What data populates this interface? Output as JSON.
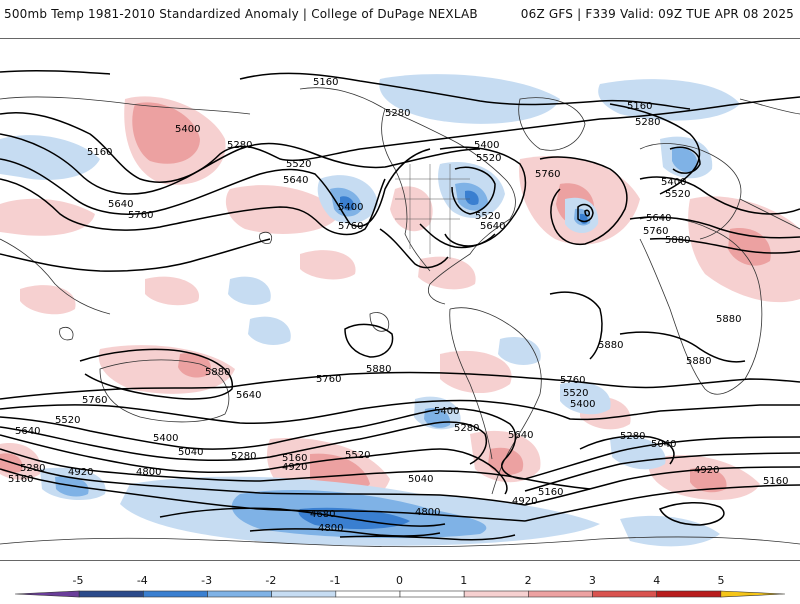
{
  "header": {
    "title": "500mb Temp 1981-2010 Standardized Anomaly | College of DuPage NEXLAB",
    "run_info": "06Z GFS | F339 Valid: 09Z TUE APR 08 2025"
  },
  "colorbar": {
    "ticks": [
      "-5",
      "-4",
      "-3",
      "-2",
      "-1",
      "0",
      "1",
      "2",
      "3",
      "4",
      "5"
    ],
    "colors": {
      "neg5": "#6a3d9a",
      "neg4": "#2b4a8a",
      "neg3": "#3a7fd0",
      "neg2": "#7fb2e6",
      "neg1": "#c6dcf2",
      "zero": "#ffffff",
      "pos1": "#f6d0d0",
      "pos2": "#eca1a1",
      "pos3": "#d9534f",
      "pos4": "#b81d1d",
      "pos5": "#7a0c0c",
      "extreme": "#f5c518"
    }
  },
  "contour_labels": {
    "l1": "5160",
    "l2": "5280",
    "l3": "5160",
    "l4": "5400",
    "l5": "5160",
    "l6": "5280",
    "l7": "5520",
    "l8": "5640",
    "l9": "5640",
    "l10": "5760",
    "l11": "5400",
    "l12": "5760",
    "l13": "5280",
    "l14": "5400",
    "l15": "5520",
    "l16": "5520",
    "l17": "5640",
    "l18": "5760",
    "l19": "5280",
    "l20": "5400",
    "l21": "5520",
    "l22": "5640",
    "l23": "5760",
    "l24": "5880",
    "l25": "5880",
    "l26": "5880",
    "l27": "5880",
    "l28": "5880",
    "l29": "5880",
    "l30": "5760",
    "l31": "5760",
    "l32": "5640",
    "l33": "5520",
    "l34": "5640",
    "l35": "5400",
    "l36": "5040",
    "l37": "5280",
    "l38": "5160",
    "l39": "4920",
    "l40": "4920",
    "l41": "4800",
    "l42": "5280",
    "l43": "5160",
    "l44": "5520",
    "l45": "5040",
    "l46": "4680",
    "l47": "4800",
    "l48": "4800",
    "l49": "4920",
    "l50": "5160",
    "l51": "5760",
    "l52": "5520",
    "l53": "5400",
    "l54": "5400",
    "l55": "5280",
    "l56": "5640",
    "l57": "5280",
    "l58": "5040",
    "l59": "4920",
    "l60": "5160"
  }
}
